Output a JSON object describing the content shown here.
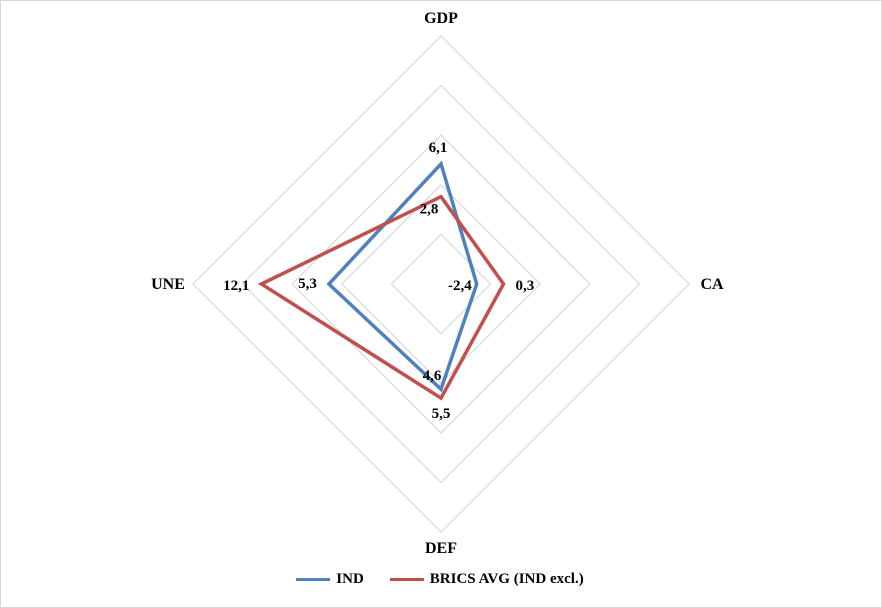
{
  "chart_data": {
    "type": "radar",
    "axes": [
      "GDP",
      "CA",
      "DEF",
      "UNE"
    ],
    "rmin": -6,
    "rmax": 20,
    "grid_rings": [
      -6,
      -1,
      4,
      9,
      14,
      19
    ],
    "series": [
      {
        "name": "IND",
        "color": "#4f81bd",
        "values": [
          6.1,
          -2.4,
          4.6,
          5.3
        ],
        "labels": [
          "6,1",
          "-2,4",
          "4,6",
          "5,3"
        ]
      },
      {
        "name": "BRICS AVG (IND excl.)",
        "color": "#c0504d",
        "values": [
          2.8,
          0.3,
          5.5,
          12.1
        ],
        "labels": [
          "2,8",
          "0,3",
          "5,5",
          "12,1"
        ]
      }
    ],
    "legend_position": "bottom",
    "grid": true
  }
}
